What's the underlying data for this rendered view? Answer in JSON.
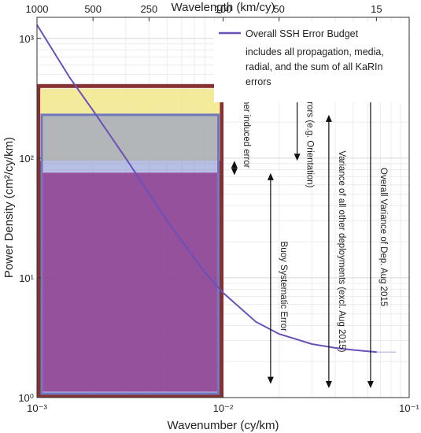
{
  "chart_data": {
    "type": "line",
    "xscale": "log",
    "yscale": "log",
    "xlim": [
      0.001,
      0.1
    ],
    "ylim": [
      1,
      1500
    ],
    "xlabel": "Wavenumber (cy/km)",
    "ylabel": "Power Density (cm²/cy/km)",
    "top_axis_label": "Wavelength (km/cy)",
    "x_ticks": [
      {
        "value": 0.001,
        "label": "10⁻³"
      },
      {
        "value": 0.01,
        "label": "10⁻²"
      },
      {
        "value": 0.1,
        "label": "10⁻¹"
      }
    ],
    "y_ticks": [
      {
        "value": 1,
        "label": "10⁰"
      },
      {
        "value": 10,
        "label": "10¹"
      },
      {
        "value": 100,
        "label": "10²"
      },
      {
        "value": 1000,
        "label": "10³"
      }
    ],
    "top_ticks": [
      {
        "wavelength": 1000,
        "label": "1000"
      },
      {
        "wavelength": 500,
        "label": "500"
      },
      {
        "wavelength": 250,
        "label": "250"
      },
      {
        "wavelength": 100,
        "label": "100"
      },
      {
        "wavelength": 50,
        "label": "50"
      },
      {
        "wavelength": 15,
        "label": "15"
      }
    ],
    "grid": true,
    "series": [
      {
        "name": "Overall SSH Error Budget",
        "color": "#6a50b8",
        "x": [
          0.001,
          0.0015,
          0.002,
          0.003,
          0.005,
          0.008,
          0.01,
          0.015,
          0.02,
          0.03,
          0.04,
          0.05,
          0.067
        ],
        "y": [
          1300,
          470,
          250,
          100,
          30,
          11,
          7.5,
          4.3,
          3.4,
          2.8,
          2.6,
          2.5,
          2.4
        ]
      }
    ],
    "legend": {
      "position": "top-right",
      "note": "includes all propagation, media, radial, and the sum of all KaRIn errors"
    },
    "boxes": [
      {
        "id": "overall-variance",
        "x": [
          0.001,
          0.01
        ],
        "y": [
          1,
          400
        ],
        "color": "#7a1c1c"
      },
      {
        "id": "other-errors",
        "x": [
          0.001,
          0.01
        ],
        "y": [
          95,
          380
        ],
        "color": "#f2e68a"
      },
      {
        "id": "other-deployments",
        "x": [
          0.001,
          0.01
        ],
        "y": [
          1,
          230
        ],
        "color": "#7b8ad0"
      },
      {
        "id": "buoy-systematic",
        "x": [
          0.001,
          0.01
        ],
        "y": [
          1,
          75
        ],
        "color": "#8f3d8f"
      }
    ],
    "arrows": [
      {
        "id": "other-errors",
        "label": "Other Errors (e.g. Orientation)",
        "x": 0.025,
        "y_top": 340,
        "y_bottom": 95
      },
      {
        "id": "tether",
        "label": "Tether induced error",
        "x": 0.0115,
        "y_top": 95,
        "y_bottom": 72
      },
      {
        "id": "buoy",
        "label": "Buoy Systematic Error",
        "x": 0.018,
        "y_top": 75,
        "y_bottom": 1.3
      },
      {
        "id": "other-deployments",
        "label": "Variance of all other deployments (excl. Aug 2015)",
        "x": 0.037,
        "y_top": 230,
        "y_bottom": 1.2
      },
      {
        "id": "overall-variance",
        "label": "Overall Variance of Dep. Aug 2015",
        "x": 0.062,
        "y_top": 400,
        "y_bottom": 1.2
      }
    ]
  }
}
